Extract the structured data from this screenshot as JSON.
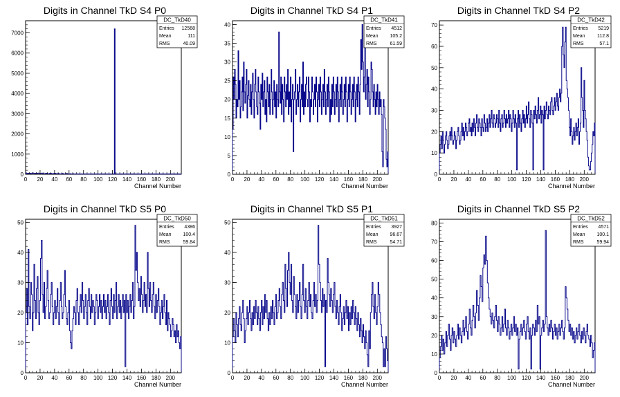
{
  "xlabel": "Channel Number",
  "stat_labels": {
    "entries": "Entries",
    "mean": "Mean",
    "rms": "RMS"
  },
  "colors": {
    "line": "#0b0b8c",
    "axis": "#000000",
    "background": "#ffffff"
  },
  "chart_data": [
    {
      "type": "histogram",
      "name": "DC_TkD40",
      "title": "Digits in Channel TkD S4 P0",
      "xlabel": "Channel Number",
      "xlim": [
        0,
        215
      ],
      "ylim": [
        0,
        7600
      ],
      "xticks": [
        0,
        20,
        40,
        60,
        80,
        100,
        120,
        140,
        160,
        180,
        200
      ],
      "yticks": [
        0,
        1000,
        2000,
        3000,
        4000,
        5000,
        6000,
        7000
      ],
      "stats": {
        "entries": "12568",
        "mean": "111",
        "rms": "40.09"
      },
      "values": [
        80,
        40,
        30,
        50,
        40,
        60,
        50,
        30,
        40,
        60,
        70,
        50,
        40,
        30,
        50,
        60,
        40,
        50,
        60,
        40,
        30,
        40,
        50,
        60,
        40,
        30,
        20,
        30,
        40,
        50,
        40,
        30,
        20,
        30,
        40,
        50,
        40,
        30,
        20,
        30,
        40,
        50,
        40,
        30,
        20,
        30,
        40,
        30,
        20,
        10,
        20,
        30,
        40,
        30,
        20,
        10,
        20,
        30,
        40,
        30,
        20,
        10,
        20,
        30,
        20,
        10,
        20,
        30,
        20,
        10,
        20,
        10,
        20,
        10,
        20,
        10,
        20,
        10,
        20,
        10,
        20,
        10,
        20,
        10,
        20,
        10,
        20,
        10,
        20,
        10,
        20,
        10,
        20,
        10,
        20,
        10,
        20,
        10,
        20,
        10,
        20,
        10,
        20,
        10,
        20,
        10,
        20,
        10,
        20,
        10,
        20,
        10,
        20,
        10,
        20,
        10,
        20,
        10,
        20,
        10,
        20,
        10,
        20,
        10,
        20,
        10,
        7200,
        20,
        10,
        20,
        10,
        20,
        10,
        20,
        10,
        20,
        10,
        20,
        10,
        20,
        10,
        20,
        10,
        20,
        10,
        20,
        10,
        20,
        10,
        20,
        10,
        20,
        10,
        20,
        10,
        20,
        10,
        20,
        10,
        20,
        10,
        20,
        10,
        20,
        10,
        20,
        10,
        20,
        10,
        20,
        10,
        20,
        10,
        20,
        10,
        20,
        10,
        20,
        10,
        20,
        10,
        20,
        10,
        20,
        10,
        20,
        10,
        20,
        10,
        20,
        10,
        20,
        10,
        20,
        10,
        20,
        10,
        20,
        10,
        20,
        10,
        20,
        10,
        20,
        10,
        20,
        10,
        20,
        10,
        20,
        10,
        20,
        10,
        20,
        10,
        20,
        10,
        20,
        10,
        20,
        10
      ]
    },
    {
      "type": "histogram",
      "name": "DC_TkD41",
      "title": "Digits in Channel TkD S4 P1",
      "xlabel": "Channel Number",
      "xlim": [
        0,
        215
      ],
      "ylim": [
        0,
        41
      ],
      "xticks": [
        0,
        20,
        40,
        60,
        80,
        100,
        120,
        140,
        160,
        180,
        200
      ],
      "yticks": [
        0,
        5,
        10,
        15,
        20,
        25,
        30,
        35,
        40
      ],
      "stats": {
        "entries": "4512",
        "mean": "105.2",
        "rms": "61.59"
      },
      "values": [
        12,
        26,
        20,
        28,
        24,
        15,
        20,
        18,
        33,
        20,
        25,
        15,
        18,
        22,
        26,
        17,
        30,
        22,
        19,
        24,
        28,
        15,
        21,
        25,
        20,
        18,
        24,
        16,
        22,
        27,
        20,
        15,
        24,
        28,
        22,
        18,
        16,
        26,
        22,
        19,
        12,
        24,
        20,
        27,
        18,
        22,
        25,
        16,
        20,
        14,
        26,
        22,
        18,
        24,
        16,
        20,
        28,
        22,
        16,
        20,
        25,
        18,
        22,
        15,
        24,
        20,
        18,
        38,
        22,
        19,
        26,
        16,
        24,
        20,
        14,
        26,
        22,
        18,
        24,
        20,
        28,
        16,
        22,
        18,
        26,
        14,
        20,
        24,
        6,
        20,
        22,
        28,
        16,
        20,
        24,
        18,
        22,
        26,
        14,
        20,
        24,
        18,
        30,
        16,
        22,
        18,
        24,
        26,
        20,
        18,
        26,
        22,
        14,
        20,
        18,
        26,
        22,
        16,
        20,
        24,
        18,
        26,
        22,
        14,
        20,
        24,
        18,
        26,
        22,
        16,
        20,
        24,
        18,
        28,
        22,
        16,
        20,
        24,
        18,
        26,
        22,
        14,
        20,
        16,
        24,
        18,
        26,
        22,
        16,
        20,
        24,
        18,
        26,
        22,
        14,
        20,
        24,
        18,
        26,
        22,
        16,
        20,
        24,
        18,
        26,
        22,
        14,
        20,
        24,
        18,
        26,
        22,
        16,
        20,
        24,
        18,
        26,
        22,
        14,
        20,
        24,
        18,
        26,
        22,
        16,
        24,
        36,
        28,
        40,
        30,
        22,
        26,
        34,
        20,
        24,
        28,
        18,
        26,
        22,
        16,
        20,
        30,
        28,
        22,
        18,
        24,
        20,
        16,
        22,
        18,
        24,
        20,
        16,
        22,
        18,
        20,
        16,
        6,
        2,
        20,
        18,
        15,
        12,
        4,
        2,
        6
      ]
    },
    {
      "type": "histogram",
      "name": "DC_TkD42",
      "title": "Digits in Channel TkD S4 P2",
      "xlabel": "Channel Number",
      "xlim": [
        0,
        215
      ],
      "ylim": [
        0,
        72
      ],
      "xticks": [
        0,
        20,
        40,
        60,
        80,
        100,
        120,
        140,
        160,
        180,
        200
      ],
      "yticks": [
        0,
        10,
        20,
        30,
        40,
        50,
        60,
        70
      ],
      "stats": {
        "entries": "5219",
        "mean": "112.8",
        "rms": "57.1"
      },
      "values": [
        10,
        14,
        18,
        12,
        20,
        16,
        10,
        14,
        18,
        20,
        16,
        12,
        14,
        18,
        20,
        16,
        22,
        18,
        14,
        16,
        20,
        18,
        12,
        16,
        20,
        22,
        18,
        14,
        16,
        20,
        24,
        18,
        22,
        16,
        20,
        24,
        22,
        18,
        20,
        24,
        26,
        20,
        22,
        18,
        24,
        20,
        26,
        22,
        18,
        24,
        28,
        22,
        20,
        26,
        24,
        22,
        18,
        26,
        22,
        20,
        28,
        24,
        20,
        22,
        26,
        20,
        24,
        28,
        22,
        26,
        30,
        24,
        22,
        28,
        26,
        22,
        24,
        28,
        26,
        22,
        30,
        24,
        20,
        26,
        28,
        22,
        24,
        30,
        26,
        22,
        28,
        24,
        26,
        30,
        22,
        28,
        26,
        20,
        24,
        30,
        26,
        22,
        28,
        24,
        2,
        26,
        30,
        22,
        28,
        24,
        20,
        26,
        30,
        24,
        28,
        22,
        26,
        32,
        24,
        28,
        34,
        26,
        22,
        30,
        28,
        24,
        2,
        30,
        26,
        32,
        28,
        24,
        30,
        36,
        26,
        28,
        32,
        24,
        30,
        28,
        2,
        32,
        26,
        30,
        34,
        28,
        26,
        32,
        30,
        28,
        34,
        36,
        30,
        28,
        32,
        36,
        30,
        34,
        38,
        32,
        30,
        36,
        40,
        34,
        38,
        60,
        69,
        56,
        50,
        62,
        69,
        44,
        40,
        36,
        30,
        22,
        18,
        26,
        20,
        14,
        18,
        22,
        16,
        20,
        24,
        18,
        22,
        26,
        14,
        20,
        24,
        50,
        36,
        30,
        22,
        44,
        30,
        26,
        20,
        16,
        8,
        4,
        2,
        2,
        6,
        10,
        14,
        20,
        18,
        24
      ]
    },
    {
      "type": "histogram",
      "name": "DC_TkD50",
      "title": "Digits in Channel TkD S5 P0",
      "xlabel": "Channel Number",
      "xlim": [
        0,
        215
      ],
      "ylim": [
        0,
        51
      ],
      "xticks": [
        0,
        20,
        40,
        60,
        80,
        100,
        120,
        140,
        160,
        180,
        200
      ],
      "yticks": [
        0,
        10,
        20,
        30,
        40,
        50
      ],
      "stats": {
        "entries": "4386",
        "mean": "100.4",
        "rms": "59.84"
      },
      "values": [
        20,
        28,
        16,
        41,
        22,
        18,
        30,
        26,
        14,
        20,
        36,
        24,
        18,
        28,
        32,
        20,
        16,
        24,
        38,
        44,
        26,
        20,
        30,
        18,
        22,
        28,
        34,
        24,
        18,
        20,
        26,
        30,
        22,
        16,
        20,
        24,
        18,
        22,
        28,
        20,
        16,
        24,
        30,
        22,
        18,
        20,
        26,
        34,
        22,
        18,
        16,
        20,
        24,
        14,
        10,
        8,
        14,
        18,
        22,
        20,
        16,
        24,
        28,
        20,
        16,
        22,
        26,
        20,
        30,
        24,
        18,
        22,
        26,
        20,
        16,
        24,
        28,
        22,
        18,
        26,
        20,
        24,
        22,
        16,
        20,
        26,
        24,
        18,
        22,
        26,
        20,
        24,
        18,
        22,
        26,
        20,
        24,
        18,
        22,
        26,
        20,
        16,
        24,
        28,
        22,
        18,
        26,
        20,
        24,
        30,
        18,
        22,
        26,
        20,
        24,
        18,
        22,
        26,
        20,
        24,
        2,
        26,
        20,
        24,
        18,
        22,
        26,
        20,
        24,
        30,
        18,
        22,
        49,
        34,
        40,
        30,
        24,
        28,
        22,
        32,
        26,
        20,
        24,
        30,
        22,
        26,
        20,
        40,
        28,
        22,
        30,
        24,
        20,
        26,
        30,
        22,
        18,
        26,
        20,
        24,
        28,
        22,
        16,
        20,
        24,
        18,
        22,
        26,
        20,
        16,
        24,
        14,
        20,
        18,
        16,
        12,
        14,
        18,
        16,
        12,
        14,
        10,
        16,
        12,
        14,
        10,
        8,
        12
      ]
    },
    {
      "type": "histogram",
      "name": "DC_TkD51",
      "title": "Digits in Channel TkD S5 P1",
      "xlabel": "Channel Number",
      "xlim": [
        0,
        215
      ],
      "ylim": [
        0,
        51
      ],
      "xticks": [
        0,
        20,
        40,
        60,
        80,
        100,
        120,
        140,
        160,
        180,
        200
      ],
      "yticks": [
        0,
        10,
        20,
        30,
        40,
        50
      ],
      "stats": {
        "entries": "3927",
        "mean": "96.67",
        "rms": "54.71"
      },
      "values": [
        12,
        18,
        14,
        10,
        20,
        16,
        12,
        18,
        22,
        16,
        14,
        20,
        24,
        18,
        10,
        14,
        18,
        22,
        16,
        20,
        24,
        18,
        14,
        20,
        16,
        22,
        18,
        24,
        20,
        16,
        22,
        18,
        14,
        20,
        24,
        16,
        22,
        18,
        26,
        20,
        24,
        18,
        14,
        20,
        16,
        22,
        18,
        24,
        20,
        16,
        22,
        26,
        18,
        20,
        24,
        28,
        22,
        18,
        26,
        30,
        24,
        20,
        36,
        28,
        22,
        34,
        40,
        30,
        26,
        36,
        24,
        20,
        32,
        26,
        22,
        18,
        26,
        20,
        24,
        30,
        22,
        18,
        26,
        36,
        24,
        20,
        28,
        22,
        18,
        24,
        30,
        22,
        26,
        20,
        18,
        24,
        30,
        22,
        26,
        20,
        24,
        49,
        36,
        30,
        24,
        20,
        28,
        22,
        26,
        2,
        24,
        20,
        38,
        30,
        26,
        22,
        28,
        24,
        20,
        26,
        30,
        22,
        18,
        24,
        20,
        16,
        22,
        26,
        20,
        14,
        18,
        22,
        16,
        20,
        24,
        18,
        22,
        14,
        20,
        16,
        22,
        18,
        24,
        20,
        16,
        22,
        18,
        14,
        20,
        16,
        12,
        18,
        14,
        10,
        16,
        12,
        8,
        14,
        10,
        6,
        2,
        14,
        8,
        20,
        26,
        30,
        22,
        18,
        26,
        20,
        16,
        22,
        30,
        26,
        20,
        16,
        12,
        10,
        2,
        8,
        2,
        12,
        8,
        4
      ]
    },
    {
      "type": "histogram",
      "name": "DC_TkD52",
      "title": "Digits in Channel TkD S5 P2",
      "xlabel": "Channel Number",
      "xlim": [
        0,
        215
      ],
      "ylim": [
        0,
        82
      ],
      "xticks": [
        0,
        20,
        40,
        60,
        80,
        100,
        120,
        140,
        160,
        180,
        200
      ],
      "yticks": [
        0,
        10,
        20,
        30,
        40,
        50,
        60,
        70,
        80
      ],
      "stats": {
        "entries": "4571",
        "mean": "100.1",
        "rms": "59.94"
      },
      "values": [
        8,
        14,
        20,
        12,
        18,
        10,
        16,
        22,
        14,
        20,
        26,
        18,
        12,
        20,
        24,
        16,
        22,
        18,
        14,
        20,
        26,
        18,
        24,
        20,
        16,
        22,
        28,
        20,
        24,
        30,
        22,
        18,
        26,
        34,
        24,
        20,
        28,
        36,
        30,
        24,
        32,
        44,
        36,
        28,
        40,
        52,
        46,
        38,
        56,
        63,
        58,
        73,
        60,
        48,
        40,
        34,
        30,
        26,
        32,
        28,
        24,
        30,
        36,
        28,
        22,
        30,
        26,
        20,
        24,
        30,
        22,
        26,
        34,
        24,
        20,
        28,
        24,
        18,
        22,
        26,
        20,
        24,
        30,
        22,
        26,
        20,
        24,
        2,
        18,
        22,
        26,
        20,
        24,
        28,
        22,
        18,
        26,
        30,
        22,
        18,
        24,
        2,
        20,
        26,
        24,
        20,
        28,
        22,
        36,
        26,
        30,
        2,
        20,
        24,
        28,
        22,
        26,
        76,
        30,
        24,
        20,
        26,
        22,
        28,
        24,
        18,
        22,
        26,
        20,
        24,
        18,
        22,
        26,
        20,
        24,
        28,
        22,
        18,
        24,
        46,
        40,
        34,
        28,
        22,
        26,
        20,
        24,
        18,
        22,
        16,
        20,
        24,
        18,
        22,
        26,
        20,
        16,
        22,
        18,
        24,
        20,
        16,
        22,
        26,
        20,
        18,
        14,
        20,
        16,
        8,
        12,
        16
      ]
    }
  ]
}
